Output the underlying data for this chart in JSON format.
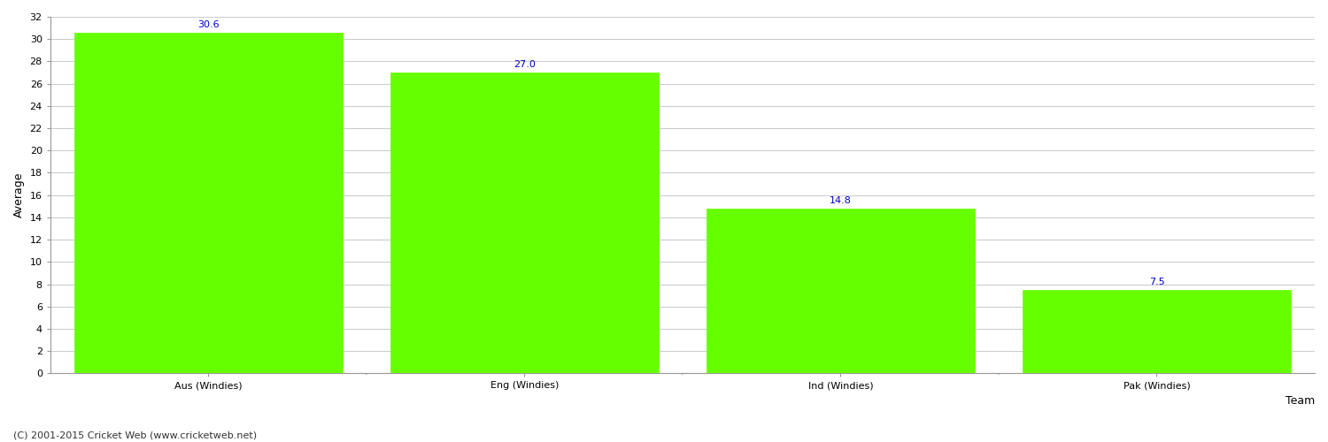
{
  "categories": [
    "Aus (Windies)",
    "Eng (Windies)",
    "Ind (Windies)",
    "Pak (Windies)"
  ],
  "values": [
    30.6,
    27.0,
    14.8,
    7.5
  ],
  "bar_color": "#66ff00",
  "bar_edgecolor": "#66ff00",
  "label_color": "#0000cc",
  "label_fontsize": 8,
  "xlabel": "Team",
  "ylabel": "Average",
  "ylim": [
    0,
    32
  ],
  "yticks": [
    0,
    2,
    4,
    6,
    8,
    10,
    12,
    14,
    16,
    18,
    20,
    22,
    24,
    26,
    28,
    30,
    32
  ],
  "grid_color": "#cccccc",
  "background_color": "#ffffff",
  "xlabel_fontsize": 9,
  "ylabel_fontsize": 9,
  "tick_fontsize": 8,
  "footer_text": "(C) 2001-2015 Cricket Web (www.cricketweb.net)",
  "footer_fontsize": 8,
  "footer_color": "#333333",
  "bar_width": 0.85
}
